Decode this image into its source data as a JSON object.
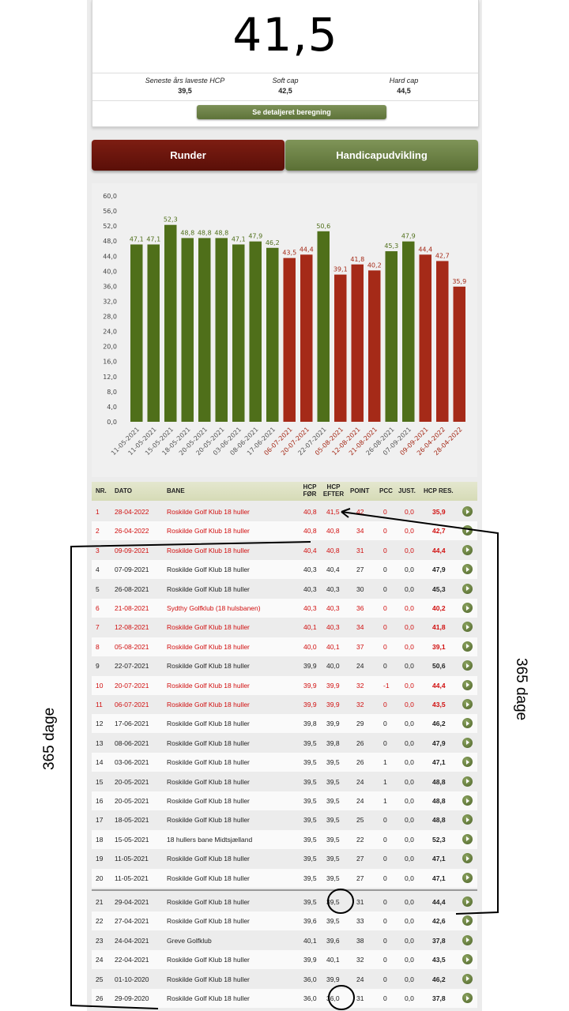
{
  "summary": {
    "hcp": "41,5",
    "lowest_label": "Seneste års laveste HCP",
    "lowest_value": "39,5",
    "softcap_label": "Soft cap",
    "softcap_value": "42,5",
    "hardcap_label": "Hard cap",
    "hardcap_value": "44,5",
    "detail_button": "Se detaljeret beregning"
  },
  "tabs": {
    "runder": "Runder",
    "handicap": "Handicapudvikling"
  },
  "colors": {
    "green": "#4f6f1a",
    "red": "#a52a18",
    "red_text": "#d10f0f"
  },
  "chart_data": {
    "type": "bar",
    "categories": [
      "11-05-2021",
      "11-05-2021",
      "15-05-2021",
      "18-05-2021",
      "20-05-2021",
      "20-05-2021",
      "03-06-2021",
      "08-06-2021",
      "17-06-2021",
      "06-07-2021",
      "20-07-2021",
      "22-07-2021",
      "05-08-2021",
      "12-08-2021",
      "21-08-2021",
      "26-08-2021",
      "07-09-2021",
      "09-09-2021",
      "26-04-2022",
      "28-04-2022"
    ],
    "values": [
      47.1,
      47.1,
      52.3,
      48.8,
      48.8,
      48.8,
      47.1,
      47.9,
      46.2,
      43.5,
      44.4,
      50.6,
      39.1,
      41.8,
      40.2,
      45.3,
      47.9,
      44.4,
      42.7,
      35.9
    ],
    "value_labels": [
      "47,1",
      "47,1",
      "52,3",
      "48,8",
      "48,8",
      "48,8",
      "47,1",
      "47,9",
      "46,2",
      "43,5",
      "44,4",
      "50,6",
      "39,1",
      "41,8",
      "40,2",
      "45,3",
      "47,9",
      "44,4",
      "42,7",
      "35,9"
    ],
    "colors": [
      "green",
      "green",
      "green",
      "green",
      "green",
      "green",
      "green",
      "green",
      "green",
      "red",
      "red",
      "green",
      "red",
      "red",
      "red",
      "green",
      "green",
      "red",
      "red",
      "red"
    ],
    "yticks": [
      "0,0",
      "4,0",
      "8,0",
      "12,0",
      "16,0",
      "20,0",
      "24,0",
      "28,0",
      "32,0",
      "36,0",
      "40,0",
      "44,0",
      "48,0",
      "52,0",
      "56,0",
      "60,0"
    ],
    "ylim": [
      0,
      60
    ],
    "grid": false
  },
  "table": {
    "headers": {
      "nr": "NR.",
      "dato": "DATO",
      "bane": "BANE",
      "hcp_for_1": "HCP",
      "hcp_for_2": "FØR",
      "hcp_efter_1": "HCP",
      "hcp_efter_2": "EFTER",
      "point": "POINT",
      "pcc": "PCC",
      "just": "JUST.",
      "res": "HCP RES."
    },
    "rows": [
      {
        "nr": "1",
        "dato": "28-04-2022",
        "bane": "Roskilde Golf Klub 18 huller",
        "for": "40,8",
        "efter": "41,5",
        "point": "42",
        "pcc": "0",
        "just": "0,0",
        "res": "35,9",
        "red": true
      },
      {
        "nr": "2",
        "dato": "26-04-2022",
        "bane": "Roskilde Golf Klub 18 huller",
        "for": "40,8",
        "efter": "40,8",
        "point": "34",
        "pcc": "0",
        "just": "0,0",
        "res": "42,7",
        "red": true
      },
      {
        "nr": "3",
        "dato": "09-09-2021",
        "bane": "Roskilde Golf Klub 18 huller",
        "for": "40,4",
        "efter": "40,8",
        "point": "31",
        "pcc": "0",
        "just": "0,0",
        "res": "44,4",
        "red": true
      },
      {
        "nr": "4",
        "dato": "07-09-2021",
        "bane": "Roskilde Golf Klub 18 huller",
        "for": "40,3",
        "efter": "40,4",
        "point": "27",
        "pcc": "0",
        "just": "0,0",
        "res": "47,9",
        "red": false
      },
      {
        "nr": "5",
        "dato": "26-08-2021",
        "bane": "Roskilde Golf Klub 18 huller",
        "for": "40,3",
        "efter": "40,3",
        "point": "30",
        "pcc": "0",
        "just": "0,0",
        "res": "45,3",
        "red": false
      },
      {
        "nr": "6",
        "dato": "21-08-2021",
        "bane": "Sydthy Golfklub (18 hulsbanen)",
        "for": "40,3",
        "efter": "40,3",
        "point": "36",
        "pcc": "0",
        "just": "0,0",
        "res": "40,2",
        "red": true
      },
      {
        "nr": "7",
        "dato": "12-08-2021",
        "bane": "Roskilde Golf Klub 18 huller",
        "for": "40,1",
        "efter": "40,3",
        "point": "34",
        "pcc": "0",
        "just": "0,0",
        "res": "41,8",
        "red": true
      },
      {
        "nr": "8",
        "dato": "05-08-2021",
        "bane": "Roskilde Golf Klub 18 huller",
        "for": "40,0",
        "efter": "40,1",
        "point": "37",
        "pcc": "0",
        "just": "0,0",
        "res": "39,1",
        "red": true
      },
      {
        "nr": "9",
        "dato": "22-07-2021",
        "bane": "Roskilde Golf Klub 18 huller",
        "for": "39,9",
        "efter": "40,0",
        "point": "24",
        "pcc": "0",
        "just": "0,0",
        "res": "50,6",
        "red": false
      },
      {
        "nr": "10",
        "dato": "20-07-2021",
        "bane": "Roskilde Golf Klub 18 huller",
        "for": "39,9",
        "efter": "39,9",
        "point": "32",
        "pcc": "-1",
        "just": "0,0",
        "res": "44,4",
        "red": true
      },
      {
        "nr": "11",
        "dato": "06-07-2021",
        "bane": "Roskilde Golf Klub 18 huller",
        "for": "39,9",
        "efter": "39,9",
        "point": "32",
        "pcc": "0",
        "just": "0,0",
        "res": "43,5",
        "red": true
      },
      {
        "nr": "12",
        "dato": "17-06-2021",
        "bane": "Roskilde Golf Klub 18 huller",
        "for": "39,8",
        "efter": "39,9",
        "point": "29",
        "pcc": "0",
        "just": "0,0",
        "res": "46,2",
        "red": false
      },
      {
        "nr": "13",
        "dato": "08-06-2021",
        "bane": "Roskilde Golf Klub 18 huller",
        "for": "39,5",
        "efter": "39,8",
        "point": "26",
        "pcc": "0",
        "just": "0,0",
        "res": "47,9",
        "red": false
      },
      {
        "nr": "14",
        "dato": "03-06-2021",
        "bane": "Roskilde Golf Klub 18 huller",
        "for": "39,5",
        "efter": "39,5",
        "point": "26",
        "pcc": "1",
        "just": "0,0",
        "res": "47,1",
        "red": false
      },
      {
        "nr": "15",
        "dato": "20-05-2021",
        "bane": "Roskilde Golf Klub 18 huller",
        "for": "39,5",
        "efter": "39,5",
        "point": "24",
        "pcc": "1",
        "just": "0,0",
        "res": "48,8",
        "red": false
      },
      {
        "nr": "16",
        "dato": "20-05-2021",
        "bane": "Roskilde Golf Klub 18 huller",
        "for": "39,5",
        "efter": "39,5",
        "point": "24",
        "pcc": "1",
        "just": "0,0",
        "res": "48,8",
        "red": false
      },
      {
        "nr": "17",
        "dato": "18-05-2021",
        "bane": "Roskilde Golf Klub 18 huller",
        "for": "39,5",
        "efter": "39,5",
        "point": "25",
        "pcc": "0",
        "just": "0,0",
        "res": "48,8",
        "red": false
      },
      {
        "nr": "18",
        "dato": "15-05-2021",
        "bane": "18 hullers bane Midtsjælland",
        "for": "39,5",
        "efter": "39,5",
        "point": "22",
        "pcc": "0",
        "just": "0,0",
        "res": "52,3",
        "red": false
      },
      {
        "nr": "19",
        "dato": "11-05-2021",
        "bane": "Roskilde Golf Klub 18 huller",
        "for": "39,5",
        "efter": "39,5",
        "point": "27",
        "pcc": "0",
        "just": "0,0",
        "res": "47,1",
        "red": false
      },
      {
        "nr": "20",
        "dato": "11-05-2021",
        "bane": "Roskilde Golf Klub 18 huller",
        "for": "39,5",
        "efter": "39,5",
        "point": "27",
        "pcc": "0",
        "just": "0,0",
        "res": "47,1",
        "red": false
      },
      {
        "nr": "21",
        "dato": "29-04-2021",
        "bane": "Roskilde Golf Klub 18 huller",
        "for": "39,5",
        "efter": "39,5",
        "point": "31",
        "pcc": "0",
        "just": "0,0",
        "res": "44,4",
        "red": false
      },
      {
        "nr": "22",
        "dato": "27-04-2021",
        "bane": "Roskilde Golf Klub 18 huller",
        "for": "39,6",
        "efter": "39,5",
        "point": "33",
        "pcc": "0",
        "just": "0,0",
        "res": "42,6",
        "red": false
      },
      {
        "nr": "23",
        "dato": "24-04-2021",
        "bane": "Greve Golfklub",
        "for": "40,1",
        "efter": "39,6",
        "point": "38",
        "pcc": "0",
        "just": "0,0",
        "res": "37,8",
        "red": false
      },
      {
        "nr": "24",
        "dato": "22-04-2021",
        "bane": "Roskilde Golf Klub 18 huller",
        "for": "39,9",
        "efter": "40,1",
        "point": "32",
        "pcc": "0",
        "just": "0,0",
        "res": "43,5",
        "red": false
      },
      {
        "nr": "25",
        "dato": "01-10-2020",
        "bane": "Roskilde Golf Klub 18 huller",
        "for": "36,0",
        "efter": "39,9",
        "point": "24",
        "pcc": "0",
        "just": "0,0",
        "res": "46,2",
        "red": false
      },
      {
        "nr": "26",
        "dato": "29-09-2020",
        "bane": "Roskilde Golf Klub 18 huller",
        "for": "36,0",
        "efter": "36,0",
        "point": "31",
        "pcc": "0",
        "just": "0,0",
        "res": "37,8",
        "red": false
      }
    ]
  },
  "annotations": {
    "left_label": "365 dage",
    "right_label": "365 dage"
  }
}
